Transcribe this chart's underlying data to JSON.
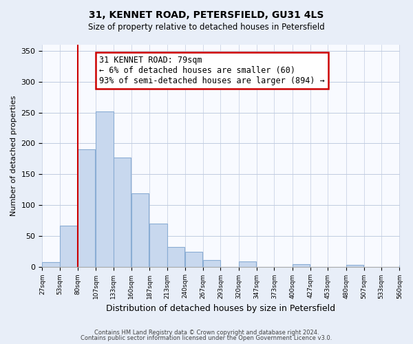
{
  "title": "31, KENNET ROAD, PETERSFIELD, GU31 4LS",
  "subtitle": "Size of property relative to detached houses in Petersfield",
  "xlabel": "Distribution of detached houses by size in Petersfield",
  "ylabel": "Number of detached properties",
  "bar_color": "#c8d8ee",
  "bar_edge_color": "#8aadd4",
  "annotation_box_text": "31 KENNET ROAD: 79sqm\n← 6% of detached houses are smaller (60)\n93% of semi-detached houses are larger (894) →",
  "annotation_box_edge_color": "#cc0000",
  "annotation_line_color": "#cc0000",
  "property_line_bin_index": 2,
  "footer_line1": "Contains HM Land Registry data © Crown copyright and database right 2024.",
  "footer_line2": "Contains public sector information licensed under the Open Government Licence v3.0.",
  "bin_edges": [
    27,
    53,
    80,
    107,
    133,
    160,
    187,
    213,
    240,
    267,
    293,
    320,
    347,
    373,
    400,
    427,
    453,
    480,
    507,
    533,
    560
  ],
  "bin_labels": [
    "27sqm",
    "53sqm",
    "80sqm",
    "107sqm",
    "133sqm",
    "160sqm",
    "187sqm",
    "213sqm",
    "240sqm",
    "267sqm",
    "293sqm",
    "320sqm",
    "347sqm",
    "373sqm",
    "400sqm",
    "427sqm",
    "453sqm",
    "480sqm",
    "507sqm",
    "533sqm",
    "560sqm"
  ],
  "counts": [
    7,
    67,
    190,
    252,
    177,
    119,
    70,
    32,
    24,
    11,
    0,
    9,
    0,
    0,
    4,
    0,
    0,
    3,
    0,
    0,
    2
  ],
  "ylim": [
    0,
    360
  ],
  "yticks": [
    0,
    50,
    100,
    150,
    200,
    250,
    300,
    350
  ],
  "background_color": "#e8eef8",
  "plot_bg_color": "#f8faff",
  "grid_color": "#c0cce0"
}
